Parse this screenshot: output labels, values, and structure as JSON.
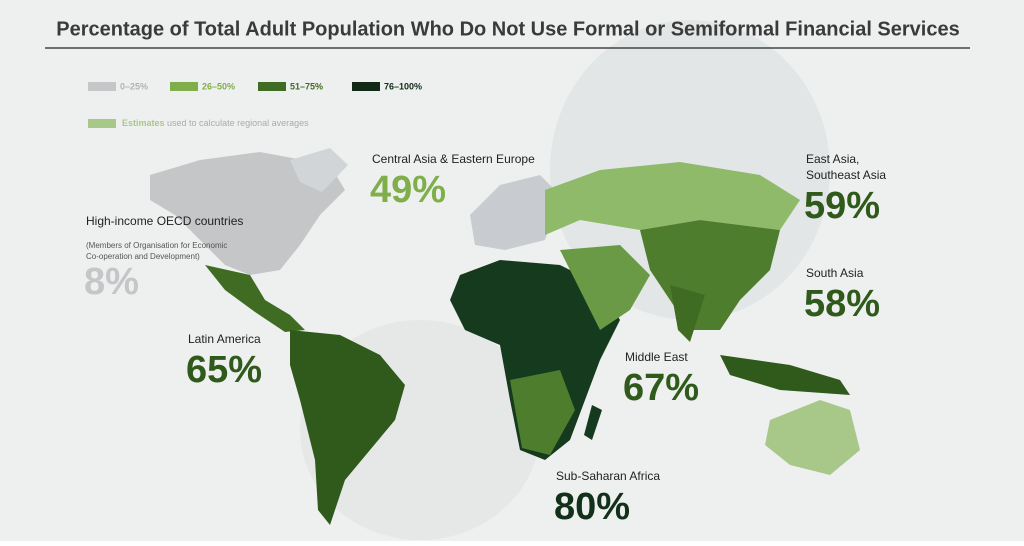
{
  "header": {
    "title": "Percentage of Total Adult Population Who Do Not Use Formal or Semiformal Financial Services"
  },
  "legend": {
    "items": [
      {
        "label": "0–25%",
        "color": "#c4c6c8"
      },
      {
        "label": "26–50%",
        "color": "#7fae4a"
      },
      {
        "label": "51–75%",
        "color": "#3f6b23"
      },
      {
        "label": "76–100%",
        "color": "#102a15"
      }
    ],
    "estimates": {
      "bold": "Estimates",
      "text": " used to calculate regional averages",
      "color": "#a8c88a"
    }
  },
  "regions": [
    {
      "label_lines": [
        "Central Asia & Eastern Europe"
      ],
      "value": "49%",
      "color": "#7fae4a"
    },
    {
      "label_lines": [
        "East Asia,",
        "Southeast Asia"
      ],
      "value": "59%",
      "color": "#2f5a1b"
    },
    {
      "label_lines": [
        "High-income OECD countries"
      ],
      "note_lines": [
        "(Members of Organisation for Economic",
        "Co-operation and Development)"
      ],
      "value": "8%",
      "color": "#c4c6c8"
    },
    {
      "label_lines": [
        "South Asia"
      ],
      "value": "58%",
      "color": "#2f5a1b"
    },
    {
      "label_lines": [
        "Latin America"
      ],
      "value": "65%",
      "color": "#2f5a1b"
    },
    {
      "label_lines": [
        "Middle East"
      ],
      "value": "67%",
      "color": "#2f5a1b"
    },
    {
      "label_lines": [
        "Sub-Saharan Africa"
      ],
      "value": "80%",
      "color": "#13301a"
    }
  ]
}
